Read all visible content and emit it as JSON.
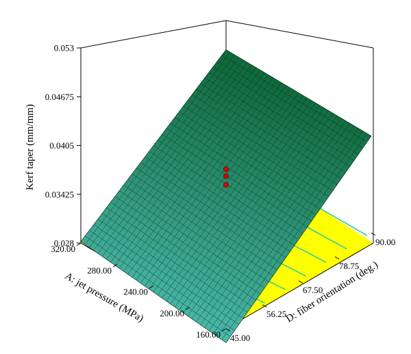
{
  "chart_data": {
    "type": "surface3d",
    "z_axis": {
      "label": "Kerf taper (mm/mm)",
      "ticks": [
        "0.028",
        "0.03425",
        "0.0405",
        "0.04675",
        "0.053"
      ],
      "range": [
        0.028,
        0.053
      ]
    },
    "x_axis": {
      "label": "A: jet pressure (MPa)",
      "ticks": [
        "160.00",
        "200.00",
        "240.00",
        "280.00",
        "320.00"
      ],
      "range": [
        160,
        320
      ]
    },
    "y_axis": {
      "label": "D: fiber orientation (deg.)",
      "ticks": [
        "45.00",
        "56.25",
        "67.50",
        "78.75",
        "90.00"
      ],
      "range": [
        45,
        90
      ]
    },
    "surface_corners": [
      {
        "A": 320,
        "D": 45,
        "kerf_taper": 0.0282
      },
      {
        "A": 160,
        "D": 45,
        "kerf_taper": 0.0262
      },
      {
        "A": 320,
        "D": 90,
        "kerf_taper": 0.0405
      },
      {
        "A": 160,
        "D": 90,
        "kerf_taper": 0.0404
      }
    ],
    "design_points": [
      {
        "A": 240,
        "D": 67.5,
        "kerf_taper": 0.0368
      },
      {
        "A": 240,
        "D": 67.5,
        "kerf_taper": 0.0359
      },
      {
        "A": 240,
        "D": 67.5,
        "kerf_taper": 0.0348
      }
    ],
    "colors": {
      "surface_low": "#55c8c0",
      "surface_high": "#0f6a3c",
      "mesh": "#0a2a18",
      "floor": "#ffff00",
      "contour": "#2fd0a0",
      "design_point": "#e00000"
    },
    "grid": false
  }
}
